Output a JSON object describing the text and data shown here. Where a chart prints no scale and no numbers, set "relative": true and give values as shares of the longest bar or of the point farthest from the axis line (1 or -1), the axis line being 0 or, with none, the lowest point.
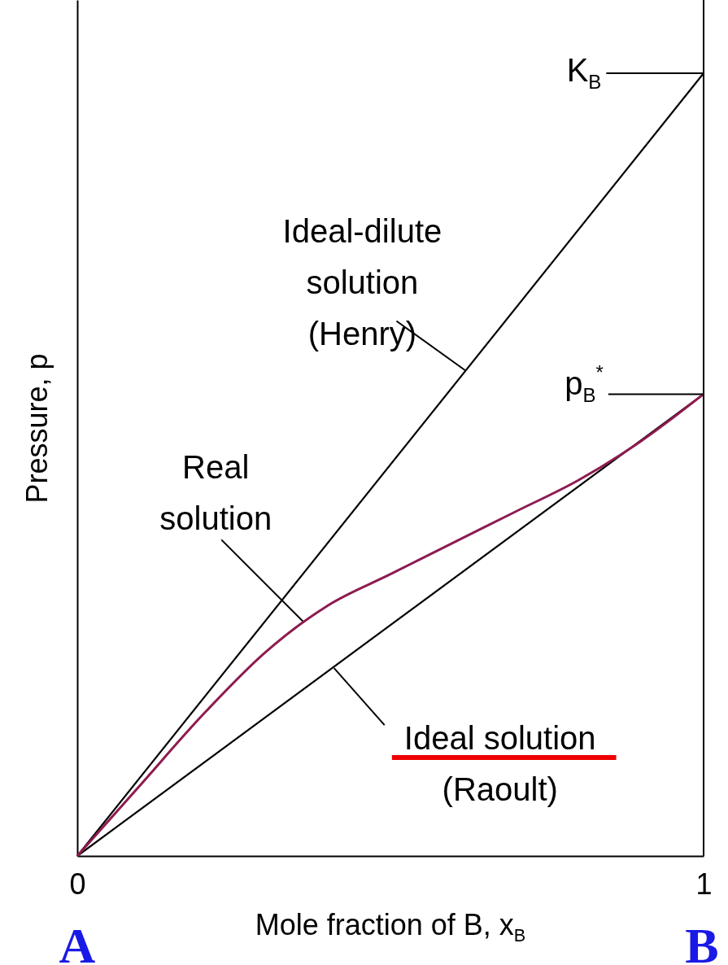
{
  "chart_data": {
    "type": "line",
    "relative": true,
    "xlabel": "Mole fraction of B, x$_{B}$",
    "ylabel": "Pressure, p",
    "xlim": [
      0,
      1
    ],
    "xticks": [
      0,
      1
    ],
    "series": [
      {
        "color": "#000000",
        "x": [
          0,
          1
        ],
        "values": [
          0,
          1
        ]
      },
      {
        "color": "#000000",
        "x": [
          0,
          1
        ],
        "values": [
          0,
          0.59
        ]
      },
      {
        "color": "#8e1b4f",
        "x": [
          0,
          0.1,
          0.2,
          0.3,
          0.4,
          0.5,
          0.6,
          0.7,
          0.8,
          0.9,
          1
        ],
        "values": [
          0,
          0.09,
          0.18,
          0.26,
          0.32,
          0.36,
          0.4,
          0.44,
          0.48,
          0.53,
          0.59
        ]
      }
    ],
    "annotations": [
      {
        "text": "Ideal-dilute solution (Henry)",
        "x": 0.62,
        "y": 0.62
      },
      {
        "text": "Real solution",
        "x": 0.36,
        "y": 0.3
      },
      {
        "text": "Ideal solution (Raoult)",
        "x": 0.41,
        "y": 0.24
      },
      "K$_{B}$",
      "p$_{B}$$^{*}$",
      "A",
      "B"
    ]
  }
}
